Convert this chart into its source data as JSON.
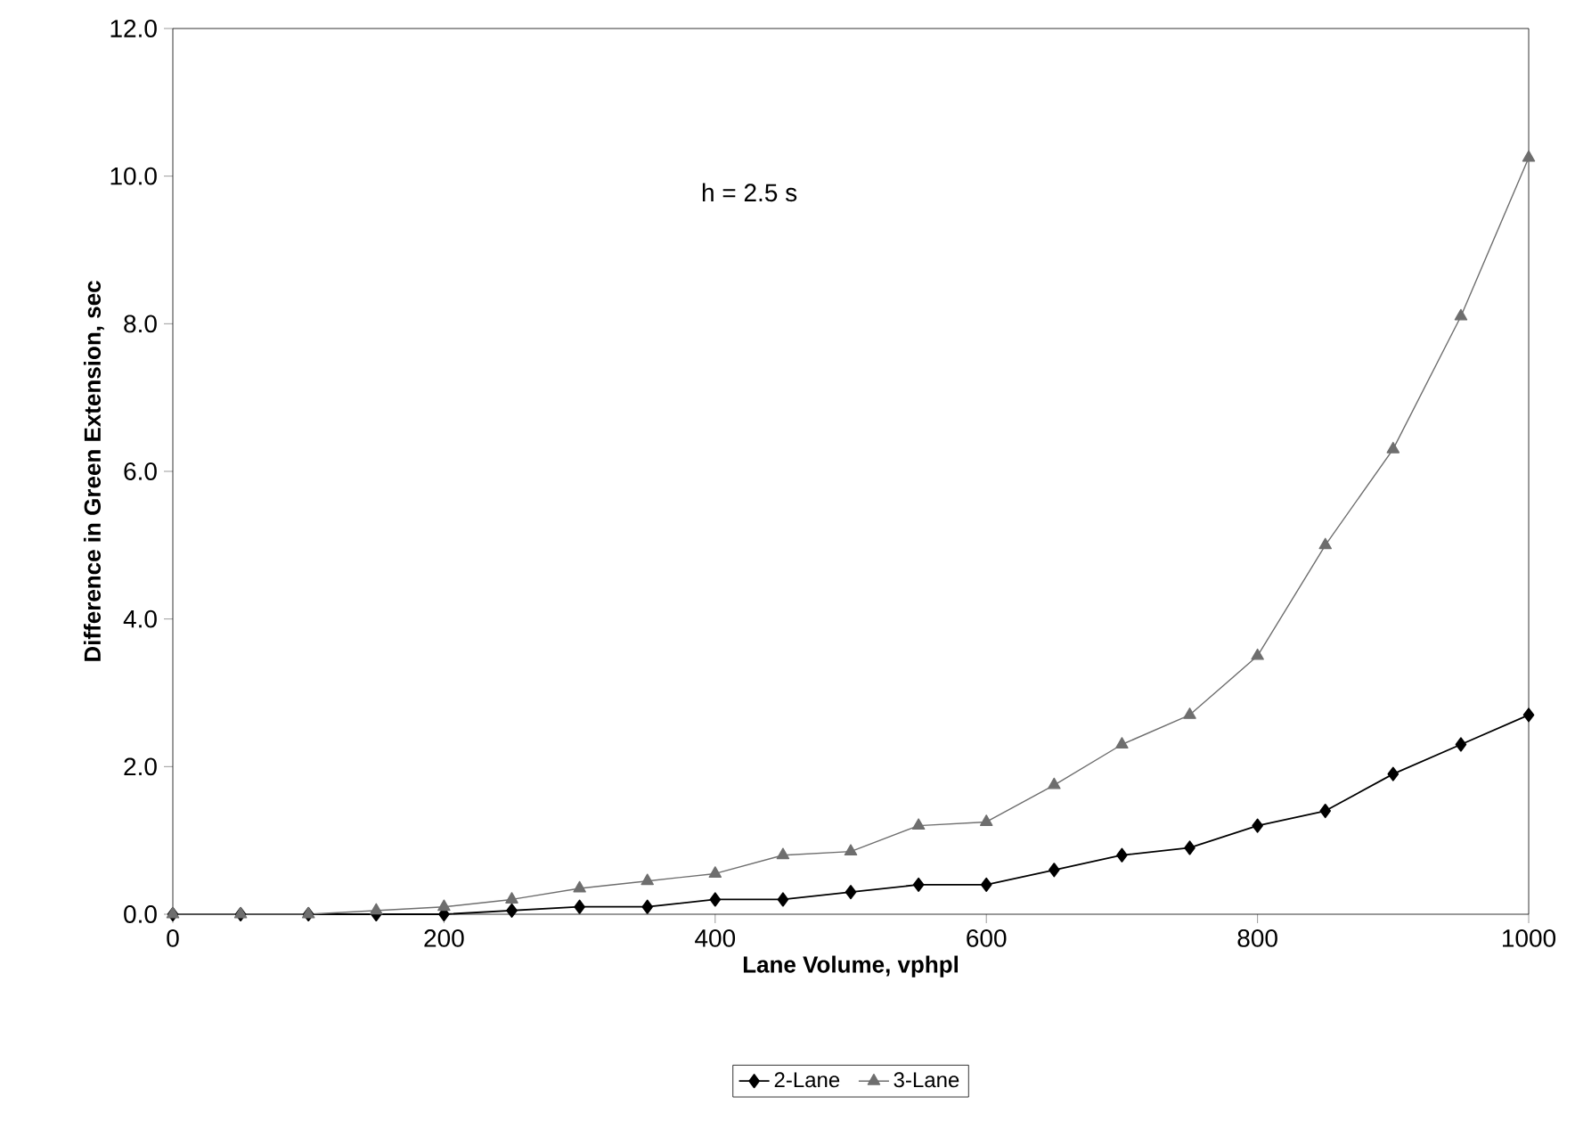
{
  "chart_data": {
    "type": "line",
    "xlabel": "Lane Volume, vphpl",
    "ylabel": "Difference in Green Extension, sec",
    "annotations": [
      "h = 2.5 s"
    ],
    "x": [
      0,
      50,
      100,
      150,
      200,
      250,
      300,
      350,
      400,
      450,
      500,
      550,
      600,
      650,
      700,
      750,
      800,
      850,
      900,
      950,
      1000
    ],
    "series": [
      {
        "name": "2-Lane",
        "color": "#000000",
        "marker": "diamond",
        "values": [
          0,
          0,
          0,
          0,
          0,
          0.05,
          0.1,
          0.1,
          0.2,
          0.2,
          0.3,
          0.4,
          0.4,
          0.6,
          0.8,
          0.9,
          1.2,
          1.4,
          1.9,
          2.3,
          2.7
        ]
      },
      {
        "name": "3-Lane",
        "color": "#6e6e6e",
        "marker": "triangle",
        "values": [
          0,
          0,
          0,
          0.05,
          0.1,
          0.2,
          0.35,
          0.45,
          0.55,
          0.8,
          0.85,
          1.2,
          1.25,
          1.75,
          2.3,
          2.7,
          3.5,
          5.0,
          6.3,
          8.1,
          10.25
        ]
      }
    ],
    "xlim": [
      0,
      1000
    ],
    "xticks": [
      0,
      200,
      400,
      600,
      800,
      1000
    ],
    "ylim": [
      0,
      12
    ],
    "yticks": [
      {
        "value": 0,
        "label": "0.0"
      },
      {
        "value": 2,
        "label": "2.0"
      },
      {
        "value": 4,
        "label": "4.0"
      },
      {
        "value": 6,
        "label": "6.0"
      },
      {
        "value": 8,
        "label": "8.0"
      },
      {
        "value": 10,
        "label": "10.0"
      },
      {
        "value": 12,
        "label": "12.0"
      }
    ],
    "grid": false,
    "legend": "bottom",
    "line_style": "solid"
  }
}
